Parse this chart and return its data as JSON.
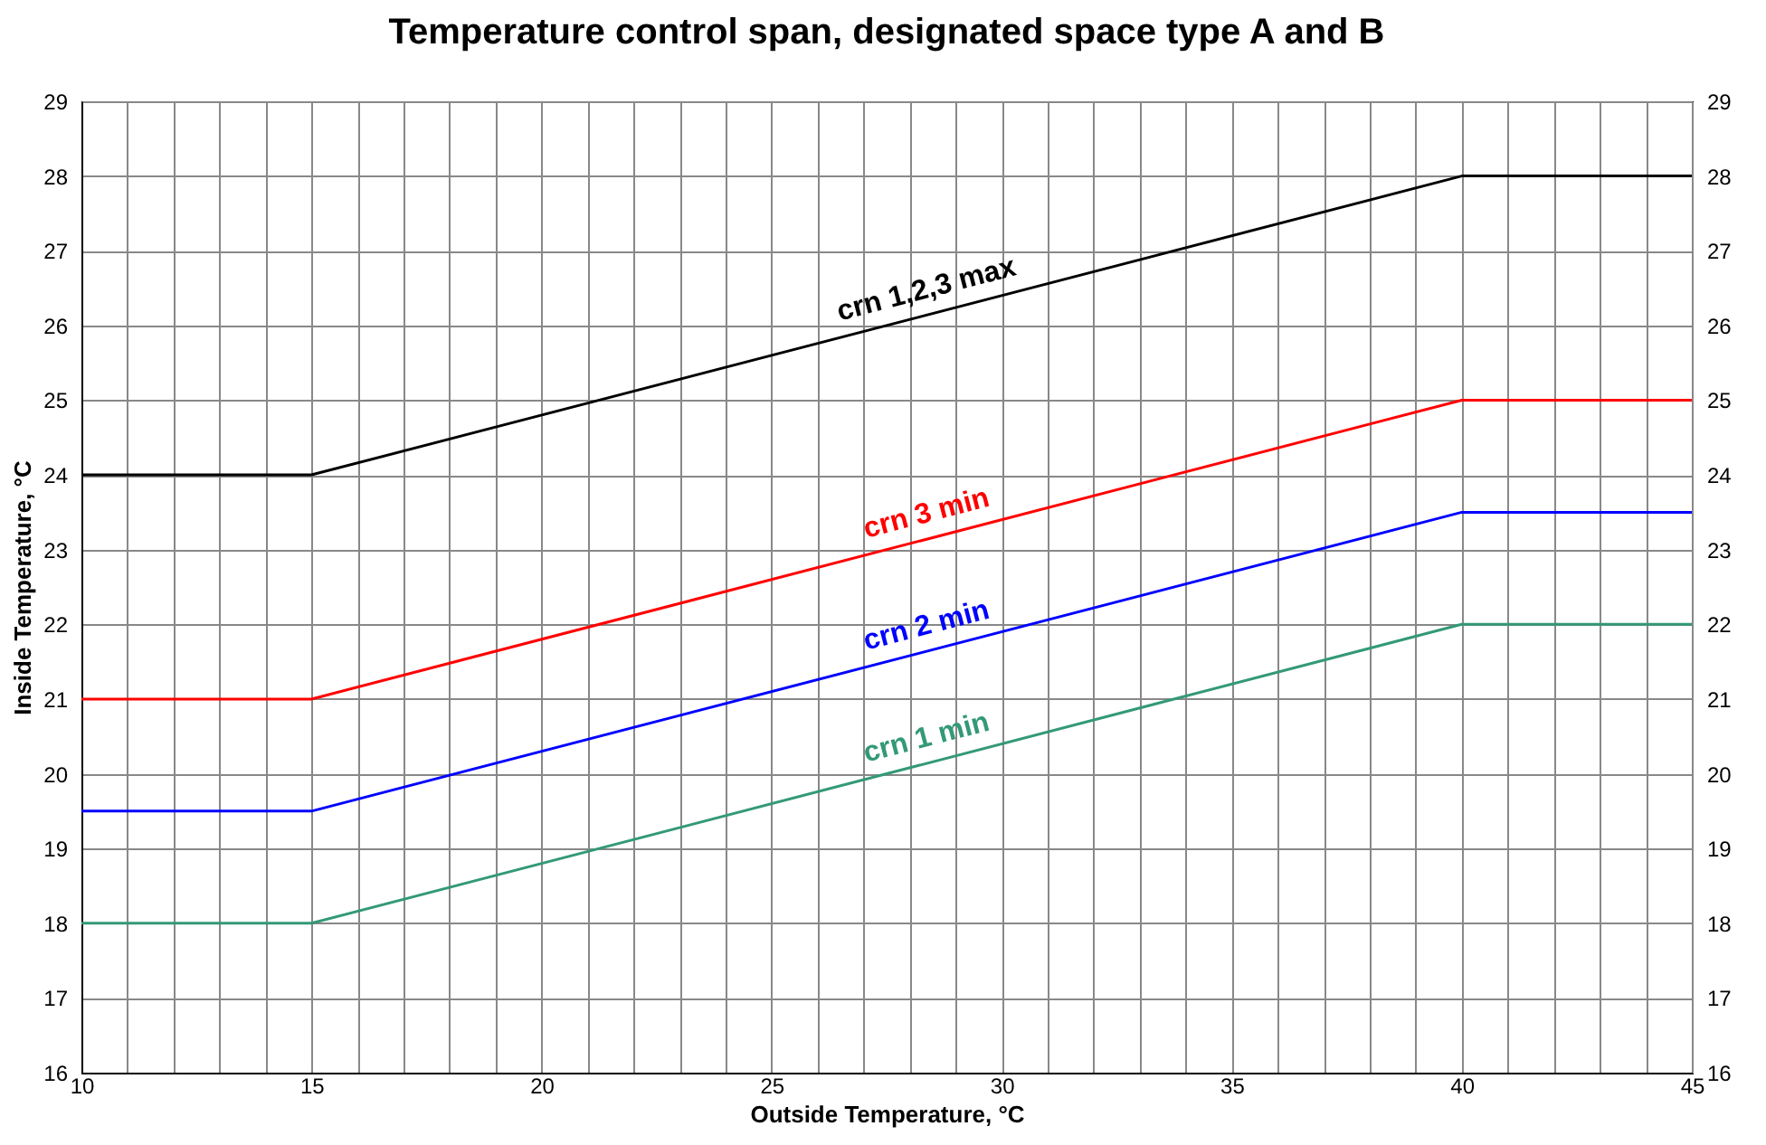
{
  "chart_data": {
    "type": "line",
    "title": "Temperature control span, designated space type A and B",
    "xlabel": "Outside Temperature, °C",
    "ylabel": "Inside Temperature, °C",
    "x": [
      10,
      15,
      40,
      45
    ],
    "series": [
      {
        "name": "crn 1,2,3 max",
        "color": "#000000",
        "values": [
          24,
          24,
          28,
          28
        ]
      },
      {
        "name": "crn 3 min",
        "color": "#ff0000",
        "values": [
          21,
          21,
          25,
          25
        ]
      },
      {
        "name": "crn 2 min",
        "color": "#0000ff",
        "values": [
          19.5,
          19.5,
          23.5,
          23.5
        ]
      },
      {
        "name": "crn 1 min",
        "color": "#339977",
        "values": [
          18,
          18,
          22,
          22
        ]
      }
    ],
    "xlim": [
      10,
      45
    ],
    "xticks": [
      10,
      {
        "value": 11,
        "label": null
      },
      {
        "value": 12,
        "label": null
      },
      {
        "value": 13,
        "label": null
      },
      {
        "value": 14,
        "label": null
      },
      15,
      {
        "value": 16,
        "label": null
      },
      {
        "value": 17,
        "label": null
      },
      {
        "value": 18,
        "label": null
      },
      {
        "value": 19,
        "label": null
      },
      20,
      {
        "value": 21,
        "label": null
      },
      {
        "value": 22,
        "label": null
      },
      {
        "value": 23,
        "label": null
      },
      {
        "value": 24,
        "label": null
      },
      25,
      {
        "value": 26,
        "label": null
      },
      {
        "value": 27,
        "label": null
      },
      {
        "value": 28,
        "label": null
      },
      {
        "value": 29,
        "label": null
      },
      30,
      {
        "value": 31,
        "label": null
      },
      {
        "value": 32,
        "label": null
      },
      {
        "value": 33,
        "label": null
      },
      {
        "value": 34,
        "label": null
      },
      35,
      {
        "value": 36,
        "label": null
      },
      {
        "value": 37,
        "label": null
      },
      {
        "value": 38,
        "label": null
      },
      {
        "value": 39,
        "label": null
      },
      40,
      {
        "value": 41,
        "label": null
      },
      {
        "value": 42,
        "label": null
      },
      {
        "value": 43,
        "label": null
      },
      {
        "value": 44,
        "label": null
      },
      45
    ],
    "ylim": [
      16,
      29
    ],
    "yticks": [
      16,
      17,
      18,
      19,
      20,
      21,
      22,
      23,
      24,
      25,
      26,
      27,
      28,
      29
    ],
    "y2lim": [
      16,
      29
    ],
    "y2ticks": [
      16,
      17,
      18,
      19,
      20,
      21,
      22,
      23,
      24,
      25,
      26,
      27,
      28,
      29
    ],
    "grid": true
  }
}
